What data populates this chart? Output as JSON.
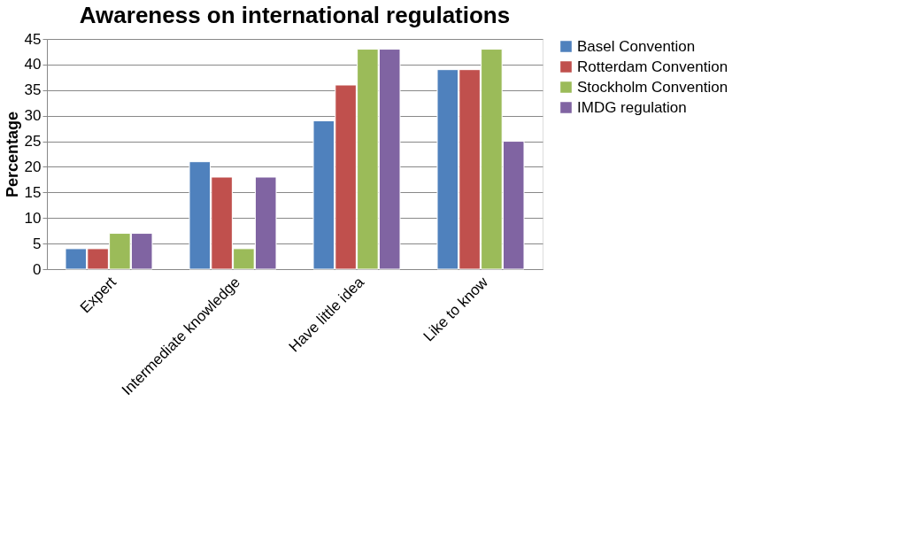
{
  "chart_data": {
    "type": "bar",
    "title": "Awareness on international regulations",
    "ylabel": "Percentage",
    "categories": [
      "Expert",
      "Intermediate knowledge",
      "Have little idea",
      "Like to know"
    ],
    "series": [
      {
        "name": "Basel Convention",
        "color": "#4f81bd",
        "values": [
          4,
          21,
          29,
          39
        ]
      },
      {
        "name": "Rotterdam Convention",
        "color": "#c0504d",
        "values": [
          4,
          18,
          36,
          39
        ]
      },
      {
        "name": "Stockholm Convention",
        "color": "#9bbb59",
        "values": [
          7,
          4,
          43,
          43
        ]
      },
      {
        "name": "IMDG regulation",
        "color": "#8064a2",
        "values": [
          7,
          18,
          43,
          25
        ]
      }
    ],
    "ylim": [
      0,
      45
    ],
    "yticks": [
      0,
      5,
      10,
      15,
      20,
      25,
      30,
      35,
      40,
      45
    ],
    "grid": "y",
    "legend": "right"
  }
}
